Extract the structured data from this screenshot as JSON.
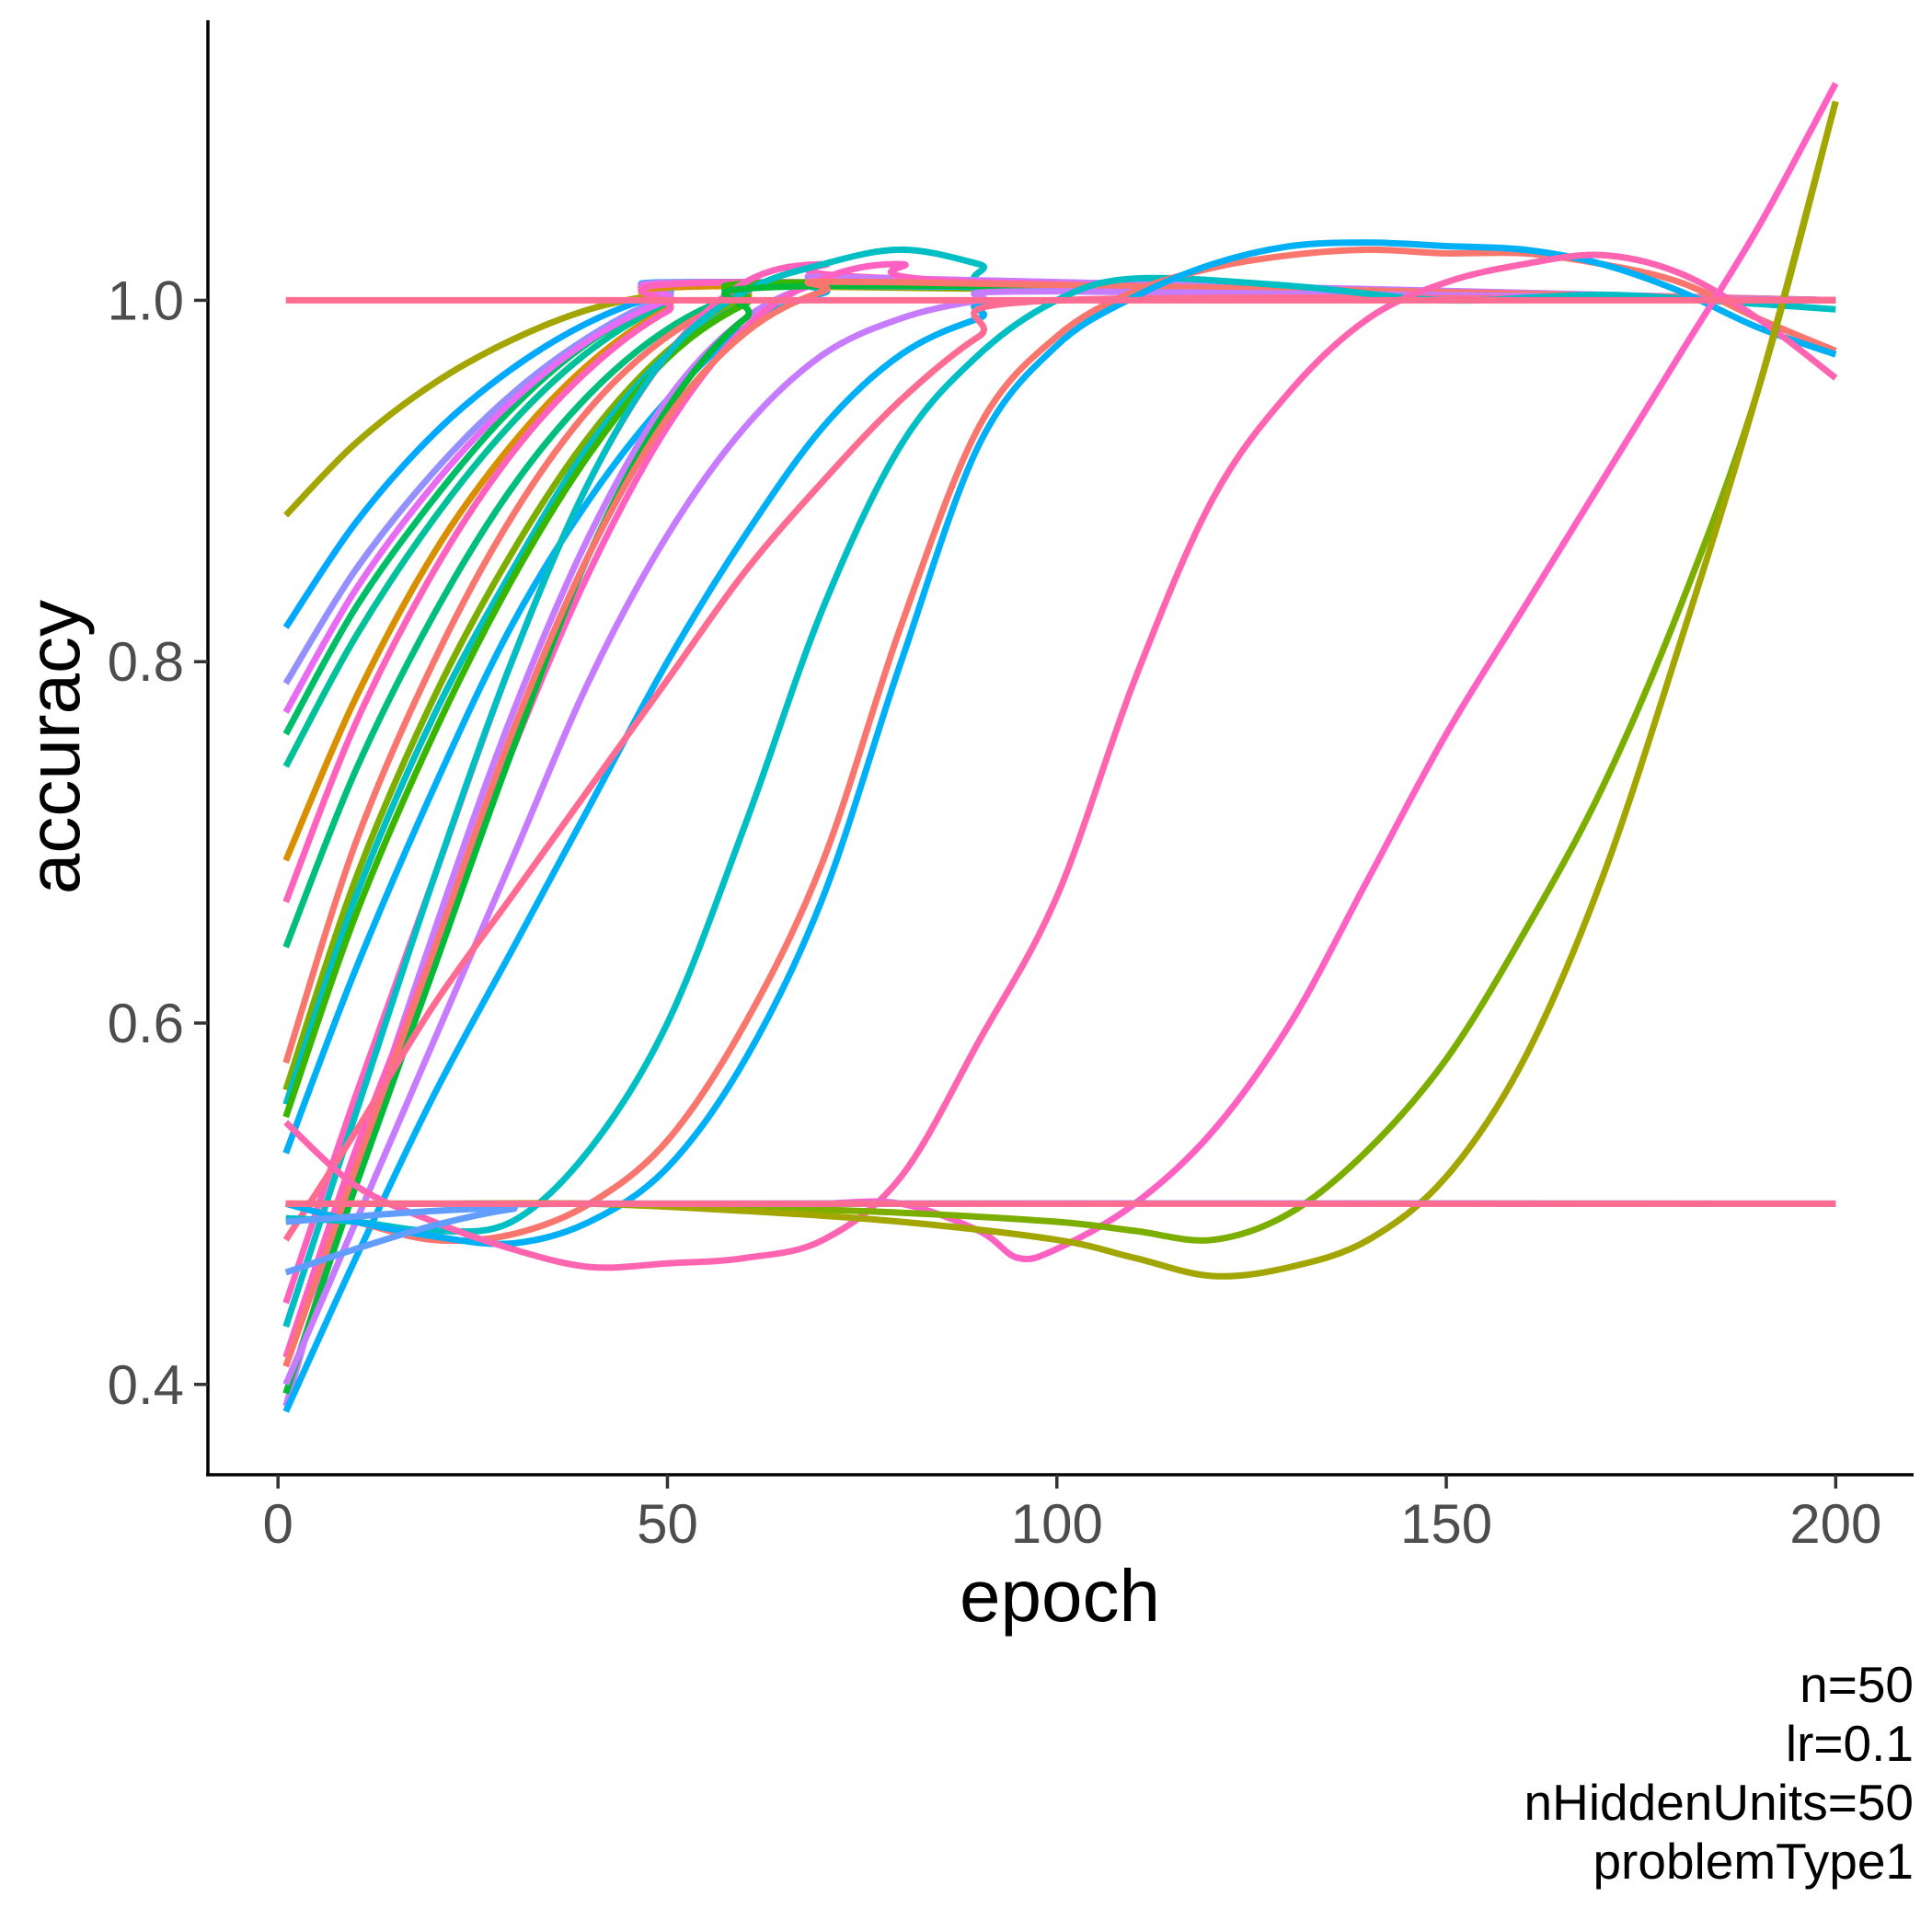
{
  "chart_data": {
    "type": "line",
    "title": "",
    "xlabel": "epoch",
    "ylabel": "accuracy",
    "xlim": [
      -9,
      210
    ],
    "ylim": [
      0.35,
      1.155
    ],
    "xticks": [
      0,
      50,
      100,
      150,
      200
    ],
    "xtick_labels": [
      "0",
      "50",
      "100",
      "150",
      "200"
    ],
    "yticks": [
      0.4,
      0.6,
      0.8,
      1.0
    ],
    "ytick_labels": [
      "0.4",
      "0.6",
      "0.8",
      "1.0"
    ],
    "grid": false,
    "legend": "none",
    "caption": [
      "n=50",
      "lr=0.1",
      "nHiddenUnits=50",
      "problemType1"
    ],
    "series": [
      {
        "color": "#A3A500",
        "x": [
          1,
          10,
          20,
          30,
          40,
          50,
          60,
          200
        ],
        "y": [
          0.881,
          0.921,
          0.954,
          0.978,
          0.995,
          1.004,
          1.008,
          1.0
        ]
      },
      {
        "color": "#00A9FF",
        "x": [
          1,
          10,
          20,
          30,
          40,
          50,
          60,
          200
        ],
        "y": [
          0.819,
          0.877,
          0.926,
          0.962,
          0.988,
          1.004,
          1.01,
          1.0
        ]
      },
      {
        "color": "#9590FF",
        "x": [
          1,
          10,
          20,
          30,
          40,
          50,
          60,
          200
        ],
        "y": [
          0.788,
          0.851,
          0.905,
          0.948,
          0.98,
          1.002,
          1.01,
          1.0
        ]
      },
      {
        "color": "#00BE67",
        "x": [
          1,
          10,
          20,
          30,
          40,
          50,
          60,
          200
        ],
        "y": [
          0.76,
          0.83,
          0.89,
          0.94,
          0.977,
          1.0,
          1.01,
          1.0
        ]
      },
      {
        "color": "#00C19A",
        "x": [
          1,
          10,
          20,
          30,
          40,
          50,
          60,
          200
        ],
        "y": [
          0.742,
          0.814,
          0.879,
          0.932,
          0.972,
          0.998,
          1.01,
          1.0
        ]
      },
      {
        "color": "#E76BF3",
        "x": [
          1,
          10,
          20,
          30,
          40,
          50,
          60,
          200
        ],
        "y": [
          0.772,
          0.84,
          0.898,
          0.944,
          0.978,
          1.0,
          1.01,
          1.0
        ]
      },
      {
        "color": "#D89000",
        "x": [
          1,
          10,
          20,
          30,
          40,
          50,
          60,
          200
        ],
        "y": [
          0.69,
          0.78,
          0.86,
          0.92,
          0.965,
          0.995,
          1.008,
          1.0
        ]
      },
      {
        "color": "#FF62BC",
        "x": [
          1,
          10,
          20,
          30,
          40,
          50,
          60,
          200
        ],
        "y": [
          0.667,
          0.766,
          0.85,
          0.915,
          0.962,
          0.994,
          1.01,
          1.0
        ]
      },
      {
        "color": "#00BF7D",
        "x": [
          1,
          10,
          20,
          30,
          40,
          50,
          60,
          70,
          200
        ],
        "y": [
          0.642,
          0.74,
          0.826,
          0.896,
          0.948,
          0.984,
          1.004,
          1.008,
          1.0
        ]
      },
      {
        "color": "#F8766D",
        "x": [
          1,
          10,
          20,
          30,
          40,
          50,
          60,
          70,
          200
        ],
        "y": [
          0.578,
          0.7,
          0.8,
          0.88,
          0.94,
          0.98,
          1.002,
          1.008,
          1.0
        ]
      },
      {
        "color": "#7CAE00",
        "x": [
          1,
          10,
          20,
          30,
          40,
          50,
          60,
          70,
          200
        ],
        "y": [
          0.563,
          0.68,
          0.78,
          0.86,
          0.925,
          0.972,
          1.0,
          1.008,
          1.0
        ]
      },
      {
        "color": "#00BFC4",
        "x": [
          1,
          10,
          20,
          30,
          40,
          50,
          60,
          70,
          200
        ],
        "y": [
          0.555,
          0.67,
          0.77,
          0.85,
          0.92,
          0.97,
          0.998,
          1.008,
          1.0
        ]
      },
      {
        "color": "#00B0F6",
        "x": [
          1,
          10,
          20,
          30,
          40,
          50,
          60,
          70,
          80,
          200
        ],
        "y": [
          0.528,
          0.63,
          0.73,
          0.82,
          0.89,
          0.945,
          0.985,
          1.004,
          1.008,
          1.0
        ]
      },
      {
        "color": "#39B600",
        "x": [
          1,
          10,
          20,
          30,
          40,
          50,
          60,
          70,
          200
        ],
        "y": [
          0.548,
          0.66,
          0.76,
          0.845,
          0.915,
          0.968,
          0.998,
          1.01,
          1.0
        ]
      },
      {
        "color": "#FF62BC",
        "x": [
          1,
          10,
          20,
          30,
          40,
          50,
          60,
          70,
          80,
          200
        ],
        "y": [
          0.445,
          0.56,
          0.68,
          0.8,
          0.9,
          0.97,
          1.01,
          1.02,
          1.012,
          1.0
        ]
      },
      {
        "color": "#00BFC4",
        "x": [
          1,
          10,
          20,
          30,
          40,
          50,
          60,
          70,
          80,
          90,
          100,
          200
        ],
        "y": [
          0.432,
          0.55,
          0.68,
          0.8,
          0.9,
          0.97,
          1.005,
          1.02,
          1.028,
          1.02,
          1.006,
          1.0
        ]
      },
      {
        "color": "#C77CFF",
        "x": [
          1,
          10,
          20,
          30,
          40,
          50,
          60,
          70,
          80,
          200
        ],
        "y": [
          0.388,
          0.52,
          0.65,
          0.77,
          0.87,
          0.945,
          0.99,
          1.01,
          1.012,
          1.0
        ]
      },
      {
        "color": "#FF61C3",
        "x": [
          1,
          10,
          20,
          30,
          40,
          50,
          60,
          70,
          80,
          90,
          200
        ],
        "y": [
          0.415,
          0.53,
          0.64,
          0.75,
          0.85,
          0.93,
          0.985,
          1.012,
          1.02,
          1.01,
          1.0
        ]
      },
      {
        "color": "#00BA38",
        "x": [
          1,
          10,
          20,
          30,
          40,
          50,
          60,
          70,
          200
        ],
        "y": [
          0.395,
          0.51,
          0.63,
          0.75,
          0.86,
          0.94,
          0.99,
          1.008,
          1.0
        ]
      },
      {
        "color": "#F8766D",
        "x": [
          1,
          10,
          20,
          30,
          40,
          50,
          60,
          70,
          80,
          200
        ],
        "y": [
          0.41,
          0.52,
          0.64,
          0.76,
          0.86,
          0.935,
          0.982,
          1.005,
          1.01,
          1.0
        ]
      },
      {
        "color": "#00B0F6",
        "x": [
          1,
          10,
          20,
          30,
          40,
          50,
          60,
          70,
          80,
          90,
          100,
          200
        ],
        "y": [
          0.385,
          0.47,
          0.56,
          0.64,
          0.72,
          0.8,
          0.87,
          0.93,
          0.97,
          0.99,
          1.0,
          1.0
        ]
      },
      {
        "color": "#C77CFF",
        "x": [
          1,
          10,
          20,
          30,
          40,
          50,
          60,
          70,
          80,
          90,
          100,
          200
        ],
        "y": [
          0.4,
          0.49,
          0.59,
          0.69,
          0.79,
          0.87,
          0.93,
          0.97,
          0.99,
          1.0,
          1.005,
          1.0
        ]
      },
      {
        "color": "#FF6C91",
        "x": [
          1,
          10,
          20,
          30,
          40,
          50,
          60,
          70,
          80,
          90,
          100,
          200
        ],
        "y": [
          0.48,
          0.54,
          0.61,
          0.67,
          0.73,
          0.79,
          0.85,
          0.9,
          0.945,
          0.98,
          1.0,
          1.0
        ]
      },
      {
        "color": "#00BFC4",
        "x": [
          1,
          10,
          20,
          30,
          40,
          50,
          60,
          70,
          80,
          90,
          100,
          110,
          130,
          150,
          170,
          190,
          200
        ],
        "y": [
          0.492,
          0.49,
          0.485,
          0.49,
          0.53,
          0.6,
          0.71,
          0.83,
          0.92,
          0.97,
          1.0,
          1.012,
          1.008,
          1.0,
          1.003,
          0.998,
          0.995
        ]
      },
      {
        "color": "#F8766D",
        "x": [
          1,
          10,
          20,
          30,
          40,
          50,
          60,
          70,
          80,
          90,
          100,
          110,
          120,
          130,
          140,
          150,
          160,
          170,
          180,
          190,
          200
        ],
        "y": [
          0.5,
          0.49,
          0.48,
          0.483,
          0.5,
          0.535,
          0.6,
          0.69,
          0.82,
          0.93,
          0.98,
          1.005,
          1.018,
          1.025,
          1.028,
          1.026,
          1.026,
          1.02,
          1.01,
          0.99,
          0.972
        ]
      },
      {
        "color": "#00B0F6",
        "x": [
          1,
          10,
          20,
          30,
          40,
          50,
          60,
          70,
          80,
          90,
          100,
          110,
          120,
          130,
          140,
          150,
          160,
          170,
          180,
          190,
          200
        ],
        "y": [
          0.5,
          0.49,
          0.482,
          0.478,
          0.49,
          0.52,
          0.58,
          0.67,
          0.8,
          0.92,
          0.975,
          1.002,
          1.02,
          1.03,
          1.032,
          1.03,
          1.028,
          1.02,
          1.005,
          0.985,
          0.97
        ]
      },
      {
        "color": "#FF64B0",
        "x": [
          1,
          10,
          20,
          30,
          40,
          50,
          60,
          70,
          80,
          90,
          100,
          110,
          120,
          130,
          140,
          150,
          160,
          170,
          180,
          190,
          200
        ],
        "y": [
          0.545,
          0.51,
          0.49,
          0.475,
          0.465,
          0.467,
          0.47,
          0.48,
          0.515,
          0.59,
          0.67,
          0.79,
          0.89,
          0.95,
          0.99,
          1.01,
          1.02,
          1.025,
          1.015,
          0.99,
          0.957
        ]
      },
      {
        "color": "#FF61C3",
        "x": [
          1,
          20,
          40,
          60,
          70,
          80,
          90,
          95,
          100,
          110,
          120,
          130,
          140,
          150,
          160,
          170,
          180,
          190,
          200
        ],
        "y": [
          0.5,
          0.5,
          0.5,
          0.498,
          0.5,
          0.5,
          0.485,
          0.47,
          0.475,
          0.5,
          0.54,
          0.6,
          0.68,
          0.76,
          0.83,
          0.9,
          0.97,
          1.04,
          1.12
        ]
      },
      {
        "color": "#7CAE00",
        "x": [
          1,
          20,
          40,
          60,
          80,
          100,
          110,
          120,
          130,
          140,
          150,
          160,
          170,
          180,
          190,
          200
        ],
        "y": [
          0.5,
          0.5,
          0.5,
          0.498,
          0.495,
          0.49,
          0.485,
          0.48,
          0.495,
          0.53,
          0.58,
          0.65,
          0.73,
          0.83,
          0.95,
          1.11
        ]
      },
      {
        "color": "#A3A500",
        "x": [
          1,
          20,
          40,
          60,
          80,
          100,
          110,
          120,
          130,
          140,
          150,
          160,
          170,
          180,
          190,
          200
        ],
        "y": [
          0.5,
          0.5,
          0.5,
          0.496,
          0.49,
          0.48,
          0.47,
          0.46,
          0.465,
          0.48,
          0.515,
          0.58,
          0.68,
          0.81,
          0.95,
          1.11
        ]
      },
      {
        "color": "#619CFF",
        "x": [
          1,
          10,
          20,
          30,
          40,
          200
        ],
        "y": [
          0.462,
          0.475,
          0.488,
          0.497,
          0.5,
          0.5
        ]
      },
      {
        "color": "#619CFF",
        "x": [
          1,
          10,
          20,
          30,
          40,
          200
        ],
        "y": [
          0.49,
          0.493,
          0.496,
          0.498,
          0.5,
          0.5
        ]
      },
      {
        "color": "#FF6C91",
        "x": [
          1,
          10,
          20,
          200
        ],
        "y": [
          0.5,
          0.5,
          0.5,
          0.5
        ]
      },
      {
        "color": "#FF6C91",
        "x": [
          1,
          20,
          40,
          200
        ],
        "y": [
          1.0,
          1.0,
          1.0,
          1.0
        ]
      }
    ]
  }
}
